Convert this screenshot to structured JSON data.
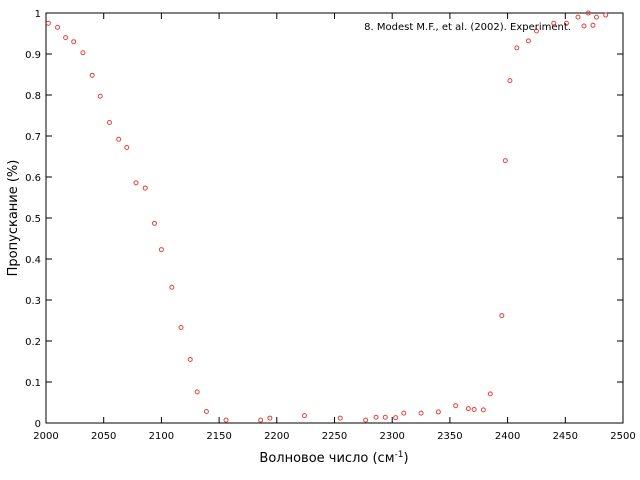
{
  "chart_data": {
    "type": "scatter",
    "xlabel": "Волновое число (см",
    "xlabel_sup": "-1",
    "xlabel_close": ")",
    "ylabel": "Пропускание (%)",
    "xlim": [
      2000,
      2500
    ],
    "ylim": [
      0,
      1
    ],
    "xticks": [
      "2000",
      "2050",
      "2100",
      "2150",
      "2200",
      "2250",
      "2300",
      "2350",
      "2400",
      "2450",
      "2500"
    ],
    "yticks": [
      "0",
      "0.1",
      "0.2",
      "0.3",
      "0.4",
      "0.5",
      "0.6",
      "0.7",
      "0.8",
      "0.9",
      "1"
    ],
    "grid": false,
    "legend_position": "top-right",
    "marker_color": "#e8413a",
    "series": [
      {
        "name": "8. Modest M.F., et al. (2002). Experiment.",
        "x": [
          2002,
          2010,
          2017,
          2024,
          2032,
          2040,
          2047,
          2055,
          2063,
          2070,
          2078,
          2086,
          2094,
          2100,
          2109,
          2117,
          2125,
          2131,
          2139,
          2156,
          2186,
          2194,
          2224,
          2255,
          2277,
          2286,
          2294,
          2303,
          2310,
          2325,
          2340,
          2355,
          2366,
          2371,
          2379,
          2385,
          2395,
          2398,
          2402,
          2408,
          2418,
          2425,
          2440,
          2451,
          2461,
          2470,
          2474,
          2477,
          2485
        ],
        "y": [
          0.975,
          0.965,
          0.94,
          0.93,
          0.903,
          0.848,
          0.797,
          0.733,
          0.692,
          0.672,
          0.586,
          0.573,
          0.487,
          0.423,
          0.331,
          0.233,
          0.155,
          0.076,
          0.028,
          0.007,
          0.007,
          0.012,
          0.018,
          0.012,
          0.007,
          0.014,
          0.014,
          0.013,
          0.024,
          0.024,
          0.027,
          0.042,
          0.035,
          0.033,
          0.032,
          0.071,
          0.262,
          0.64,
          0.835,
          0.915,
          0.932,
          0.956,
          0.975,
          0.975,
          0.99,
          1.0,
          0.97,
          0.99,
          0.995
        ]
      }
    ]
  }
}
